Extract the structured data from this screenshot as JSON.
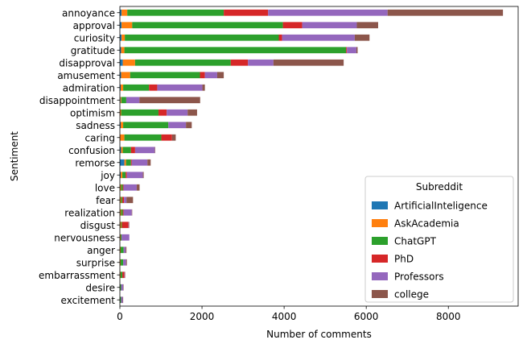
{
  "chart_data": {
    "type": "bar",
    "orientation": "horizontal",
    "stacked": true,
    "title": "",
    "xlabel": "Number of comments",
    "ylabel": "Sentiment",
    "xlim": [
      0,
      9700
    ],
    "xticks": [
      0,
      2000,
      4000,
      6000,
      8000
    ],
    "grid": false,
    "legend": {
      "title": "Subreddit",
      "placement": "lower-right"
    },
    "categories": [
      "annoyance",
      "approval",
      "curiosity",
      "gratitude",
      "disapproval",
      "amusement",
      "admiration",
      "disappointment",
      "optimism",
      "sadness",
      "caring",
      "confusion",
      "remorse",
      "joy",
      "love",
      "fear",
      "realization",
      "disgust",
      "nervousness",
      "anger",
      "surprise",
      "embarrassment",
      "desire",
      "excitement"
    ],
    "series": [
      {
        "name": "ArtificialInteligence",
        "color": "#1f77b4",
        "values": [
          40,
          40,
          40,
          30,
          70,
          30,
          20,
          15,
          10,
          20,
          10,
          30,
          110,
          20,
          10,
          10,
          10,
          10,
          10,
          10,
          10,
          10,
          5,
          5
        ]
      },
      {
        "name": "AskAcademia",
        "color": "#ff7f0e",
        "values": [
          140,
          260,
          80,
          80,
          300,
          220,
          60,
          20,
          20,
          60,
          100,
          40,
          40,
          40,
          20,
          20,
          20,
          20,
          10,
          10,
          10,
          10,
          5,
          5
        ]
      },
      {
        "name": "ChatGPT",
        "color": "#2ca02c",
        "values": [
          2350,
          3670,
          3750,
          5400,
          2330,
          1700,
          630,
          120,
          910,
          1100,
          900,
          200,
          120,
          80,
          40,
          30,
          40,
          20,
          20,
          70,
          60,
          40,
          20,
          20
        ]
      },
      {
        "name": "PhD",
        "color": "#d62728",
        "values": [
          1080,
          470,
          80,
          20,
          420,
          120,
          200,
          0,
          200,
          0,
          260,
          100,
          20,
          30,
          20,
          40,
          20,
          160,
          0,
          0,
          0,
          50,
          0,
          0
        ]
      },
      {
        "name": "Professors",
        "color": "#9467bd",
        "values": [
          2910,
          1330,
          1770,
          230,
          620,
          300,
          1100,
          320,
          510,
          430,
          0,
          480,
          380,
          390,
          320,
          60,
          200,
          10,
          190,
          50,
          70,
          10,
          50,
          40
        ]
      },
      {
        "name": "college",
        "color": "#8c564b",
        "values": [
          2810,
          520,
          360,
          30,
          1710,
          160,
          60,
          1480,
          230,
          140,
          90,
          10,
          80,
          20,
          70,
          160,
          10,
          10,
          0,
          20,
          20,
          10,
          10,
          10
        ]
      }
    ]
  }
}
